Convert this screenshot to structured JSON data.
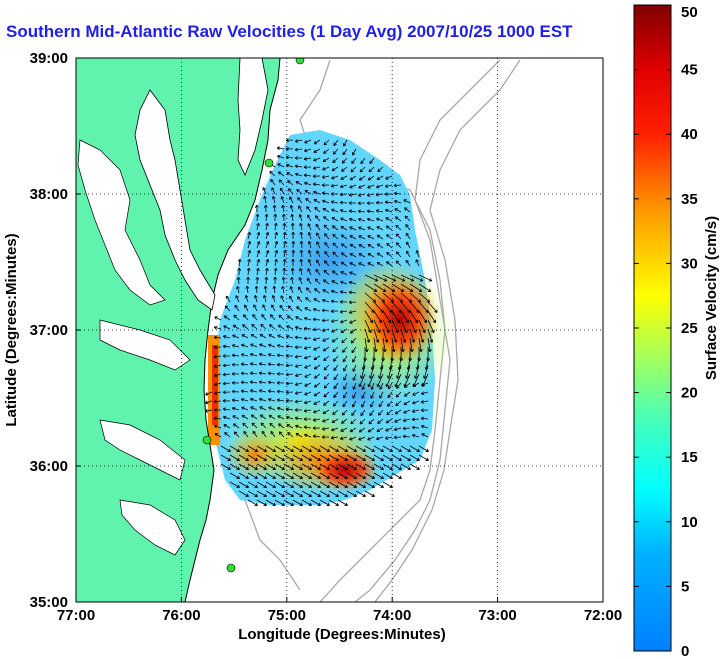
{
  "chart_data": {
    "type": "heatmap",
    "title": "Southern Mid-Atlantic Raw Velocities (1 Day Avg) 2007/10/25 1000 EST",
    "xlabel": "Longitude (Degrees:Minutes)",
    "ylabel": "Latitude (Degrees:Minutes)",
    "x_ticks": [
      "77:00",
      "76:00",
      "75:00",
      "74:00",
      "73:00",
      "72:00"
    ],
    "y_ticks": [
      "39:00",
      "38:00",
      "37:00",
      "36:00",
      "35:00"
    ],
    "xlim": [
      -77,
      -72
    ],
    "ylim": [
      35,
      39
    ],
    "grid": true,
    "colorbar": {
      "label": "Surface Velocity (cm/s)",
      "range": [
        0,
        50
      ],
      "ticks": [
        "0",
        "5",
        "10",
        "15",
        "20",
        "25",
        "30",
        "35",
        "40",
        "45",
        "50"
      ],
      "colormap": "jet"
    },
    "speed_regions_cm_s": [
      {
        "region": "offshore north (37.6N,74.6W)",
        "value": 10
      },
      {
        "region": "central shelf (36.6N,74.5W)",
        "value": 8
      },
      {
        "region": "east jet (37.2N,74.0W)",
        "value": 45
      },
      {
        "region": "south near Cape Hatteras (35.9N,74.5W)",
        "value": 42
      },
      {
        "region": "nearshore Virginia (36.5N,75.6W)",
        "value": 38
      }
    ]
  },
  "colors": {
    "land": "#5ff3ae",
    "coast_line": "#000000",
    "bathymetry": "#a0a0a0",
    "title": "#1f1fe6",
    "site_marker": "#33dd33"
  }
}
